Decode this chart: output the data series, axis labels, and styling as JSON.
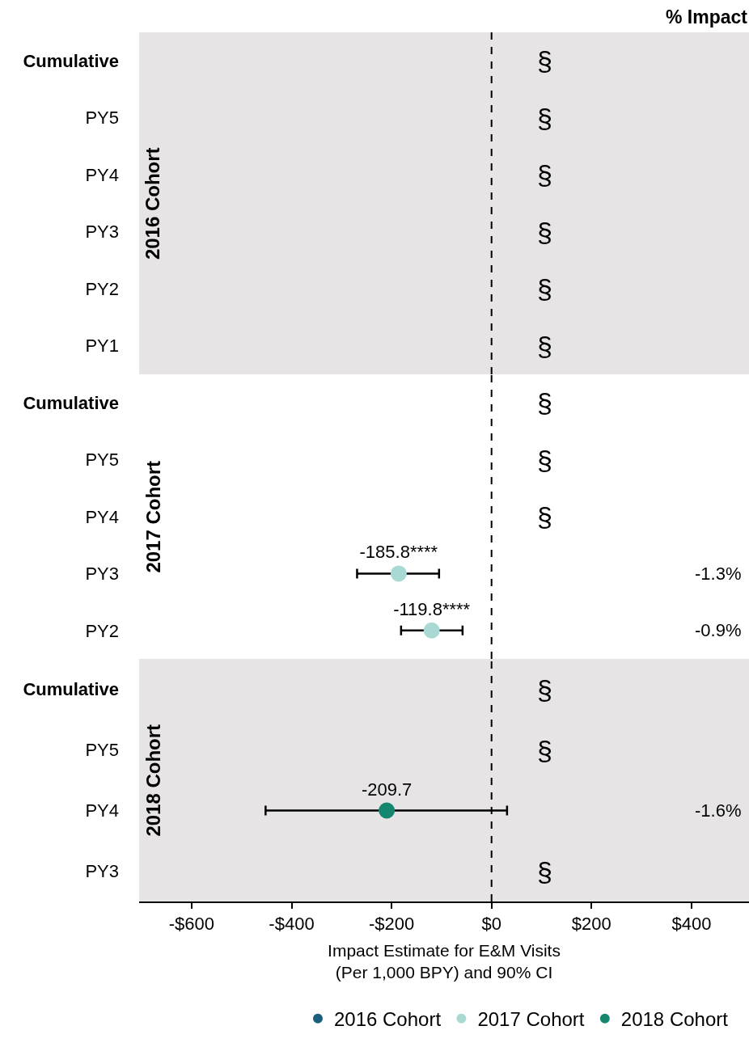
{
  "chart_data": [
    {
      "type": "scatter",
      "orientation": "horizontal",
      "ylabel": "2016 Cohort",
      "categories": [
        "Cumulative",
        "PY5",
        "PY4",
        "PY3",
        "PY2",
        "PY1"
      ],
      "series": [
        {
          "name": "2016 Cohort",
          "color": "#1b5e7e",
          "values": [
            null,
            null,
            null,
            null,
            null,
            null
          ]
        }
      ],
      "xlim": [
        -705,
        515
      ],
      "tick_labels": "y",
      "marker": "circle",
      "legend": "bottom",
      "grid": false,
      "ref_lines": [
        {
          "axis": "x",
          "value": 0,
          "color": "#000000",
          "line_style": "dashed"
        }
      ],
      "bands": [
        {
          "axis": "x",
          "from": -705,
          "to": 515,
          "color": "#e6e4e5"
        }
      ],
      "annotations": [
        "% Impact",
        "§",
        "§",
        "§",
        "§",
        "§",
        "§"
      ]
    },
    {
      "type": "scatter",
      "orientation": "horizontal",
      "ylabel": "2017 Cohort",
      "categories": [
        "Cumulative",
        "PY5",
        "PY4",
        "PY3",
        "PY2"
      ],
      "series": [
        {
          "name": "2017 Cohort",
          "color": "#a8dad3",
          "values": [
            null,
            null,
            null,
            -185.8,
            -119.8
          ],
          "errors": [
            null,
            null,
            null,
            [
              -269,
              -105
            ],
            [
              -181,
              -58
            ]
          ],
          "value_labels": [
            null,
            null,
            null,
            "-185.8****",
            "-119.8****"
          ]
        }
      ],
      "xlim": [
        -705,
        515
      ],
      "tick_labels": "y",
      "marker": "circle",
      "legend": "bottom",
      "grid": false,
      "ref_lines": [
        {
          "axis": "x",
          "value": 0,
          "color": "#000000",
          "line_style": "dashed"
        }
      ],
      "annotations": [
        "§",
        "§",
        "§",
        "-1.3%",
        "-0.9%"
      ]
    },
    {
      "type": "scatter",
      "orientation": "horizontal",
      "ylabel": "2018 Cohort",
      "xlabel": "Impact Estimate for E&M Visits\n(Per 1,000 BPY) and 90% CI",
      "categories": [
        "Cumulative",
        "PY5",
        "PY4",
        "PY3"
      ],
      "series": [
        {
          "name": "2018 Cohort",
          "color": "#15876f",
          "values": [
            null,
            null,
            -209.7,
            null
          ],
          "errors": [
            null,
            null,
            [
              -452,
              31
            ],
            null
          ],
          "value_labels": [
            null,
            null,
            "-209.7",
            null
          ]
        }
      ],
      "xlim": [
        -705,
        515
      ],
      "xticks": [
        {
          "value": -600,
          "label": "-$600"
        },
        {
          "value": -400,
          "label": "-$400"
        },
        {
          "value": -200,
          "label": "-$200"
        },
        {
          "value": 0,
          "label": "$0"
        },
        {
          "value": 200,
          "label": "$200"
        },
        {
          "value": 400,
          "label": "$400"
        }
      ],
      "marker": "circle",
      "legend": "bottom",
      "grid": false,
      "ref_lines": [
        {
          "axis": "x",
          "value": 0,
          "color": "#000000",
          "line_style": "dashed"
        }
      ],
      "bands": [
        {
          "axis": "x",
          "from": -705,
          "to": 515,
          "color": "#e6e4e5"
        }
      ],
      "annotations": [
        "§",
        "§",
        "-1.6%",
        "§"
      ]
    }
  ]
}
